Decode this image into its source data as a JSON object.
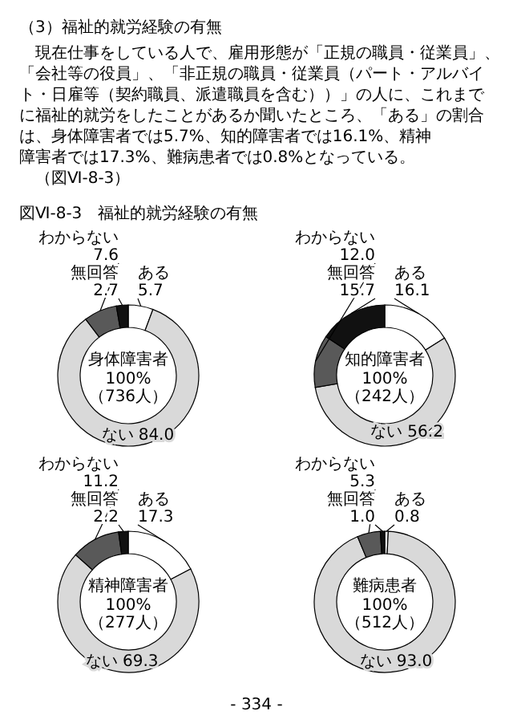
{
  "chart_data": [
    {
      "type": "other",
      "title": "（3）福祉的就労経験の有無",
      "annotations": [
        "現在仕事をしている人で、雇用形態が「正規の職員・従業員」、「会社等の役員」、「非正規の職員・従業員（パート・アルバイト・日雇等（契約職員、派遣職員を含む））」の人に、これまでに福祉的就労をしたことがあるか聞いたところ、「ある」の割合は、身体障害者では5.7%、知的障害者では16.1%、精神障害者では17.3%、難病患者では0.8%となっている。",
        "（図Ⅵ-8-3）",
        "図Ⅵ-8-3　福祉的就労経験の有無",
        "- 334 -"
      ]
    },
    {
      "type": "donut",
      "title": "身体障害者",
      "annotations": [
        "100%",
        "（736人）"
      ],
      "categories": [
        "ある",
        "ない",
        "わからない",
        "無回答"
      ],
      "values": [
        5.7,
        84.0,
        7.6,
        2.7
      ],
      "colors": [
        "#ffffff",
        "#d9d9d9",
        "#595959",
        "#111111"
      ],
      "value_labels": [
        "5.7",
        "84.0",
        "7.6",
        "2.7"
      ]
    },
    {
      "type": "donut",
      "title": "知的障害者",
      "annotations": [
        "100%",
        "（242人）"
      ],
      "categories": [
        "ある",
        "ない",
        "わからない",
        "無回答"
      ],
      "values": [
        16.1,
        56.2,
        12.0,
        15.7
      ],
      "colors": [
        "#ffffff",
        "#d9d9d9",
        "#595959",
        "#111111"
      ],
      "value_labels": [
        "16.1",
        "56.2",
        "12.0",
        "15.7"
      ]
    },
    {
      "type": "donut",
      "title": "精神障害者",
      "annotations": [
        "100%",
        "（277人）"
      ],
      "categories": [
        "ある",
        "ない",
        "わからない",
        "無回答"
      ],
      "values": [
        17.3,
        69.3,
        11.2,
        2.2
      ],
      "colors": [
        "#ffffff",
        "#d9d9d9",
        "#595959",
        "#111111"
      ],
      "value_labels": [
        "17.3",
        "69.3",
        "11.2",
        "2.2"
      ]
    },
    {
      "type": "donut",
      "title": "難病患者",
      "annotations": [
        "100%",
        "（512人）"
      ],
      "categories": [
        "ある",
        "ない",
        "わからない",
        "無回答"
      ],
      "values": [
        0.8,
        93.0,
        5.3,
        1.0
      ],
      "colors": [
        "#ffffff",
        "#d9d9d9",
        "#595959",
        "#111111"
      ],
      "value_labels": [
        "0.8",
        "93.0",
        "5.3",
        "1.0"
      ]
    }
  ]
}
